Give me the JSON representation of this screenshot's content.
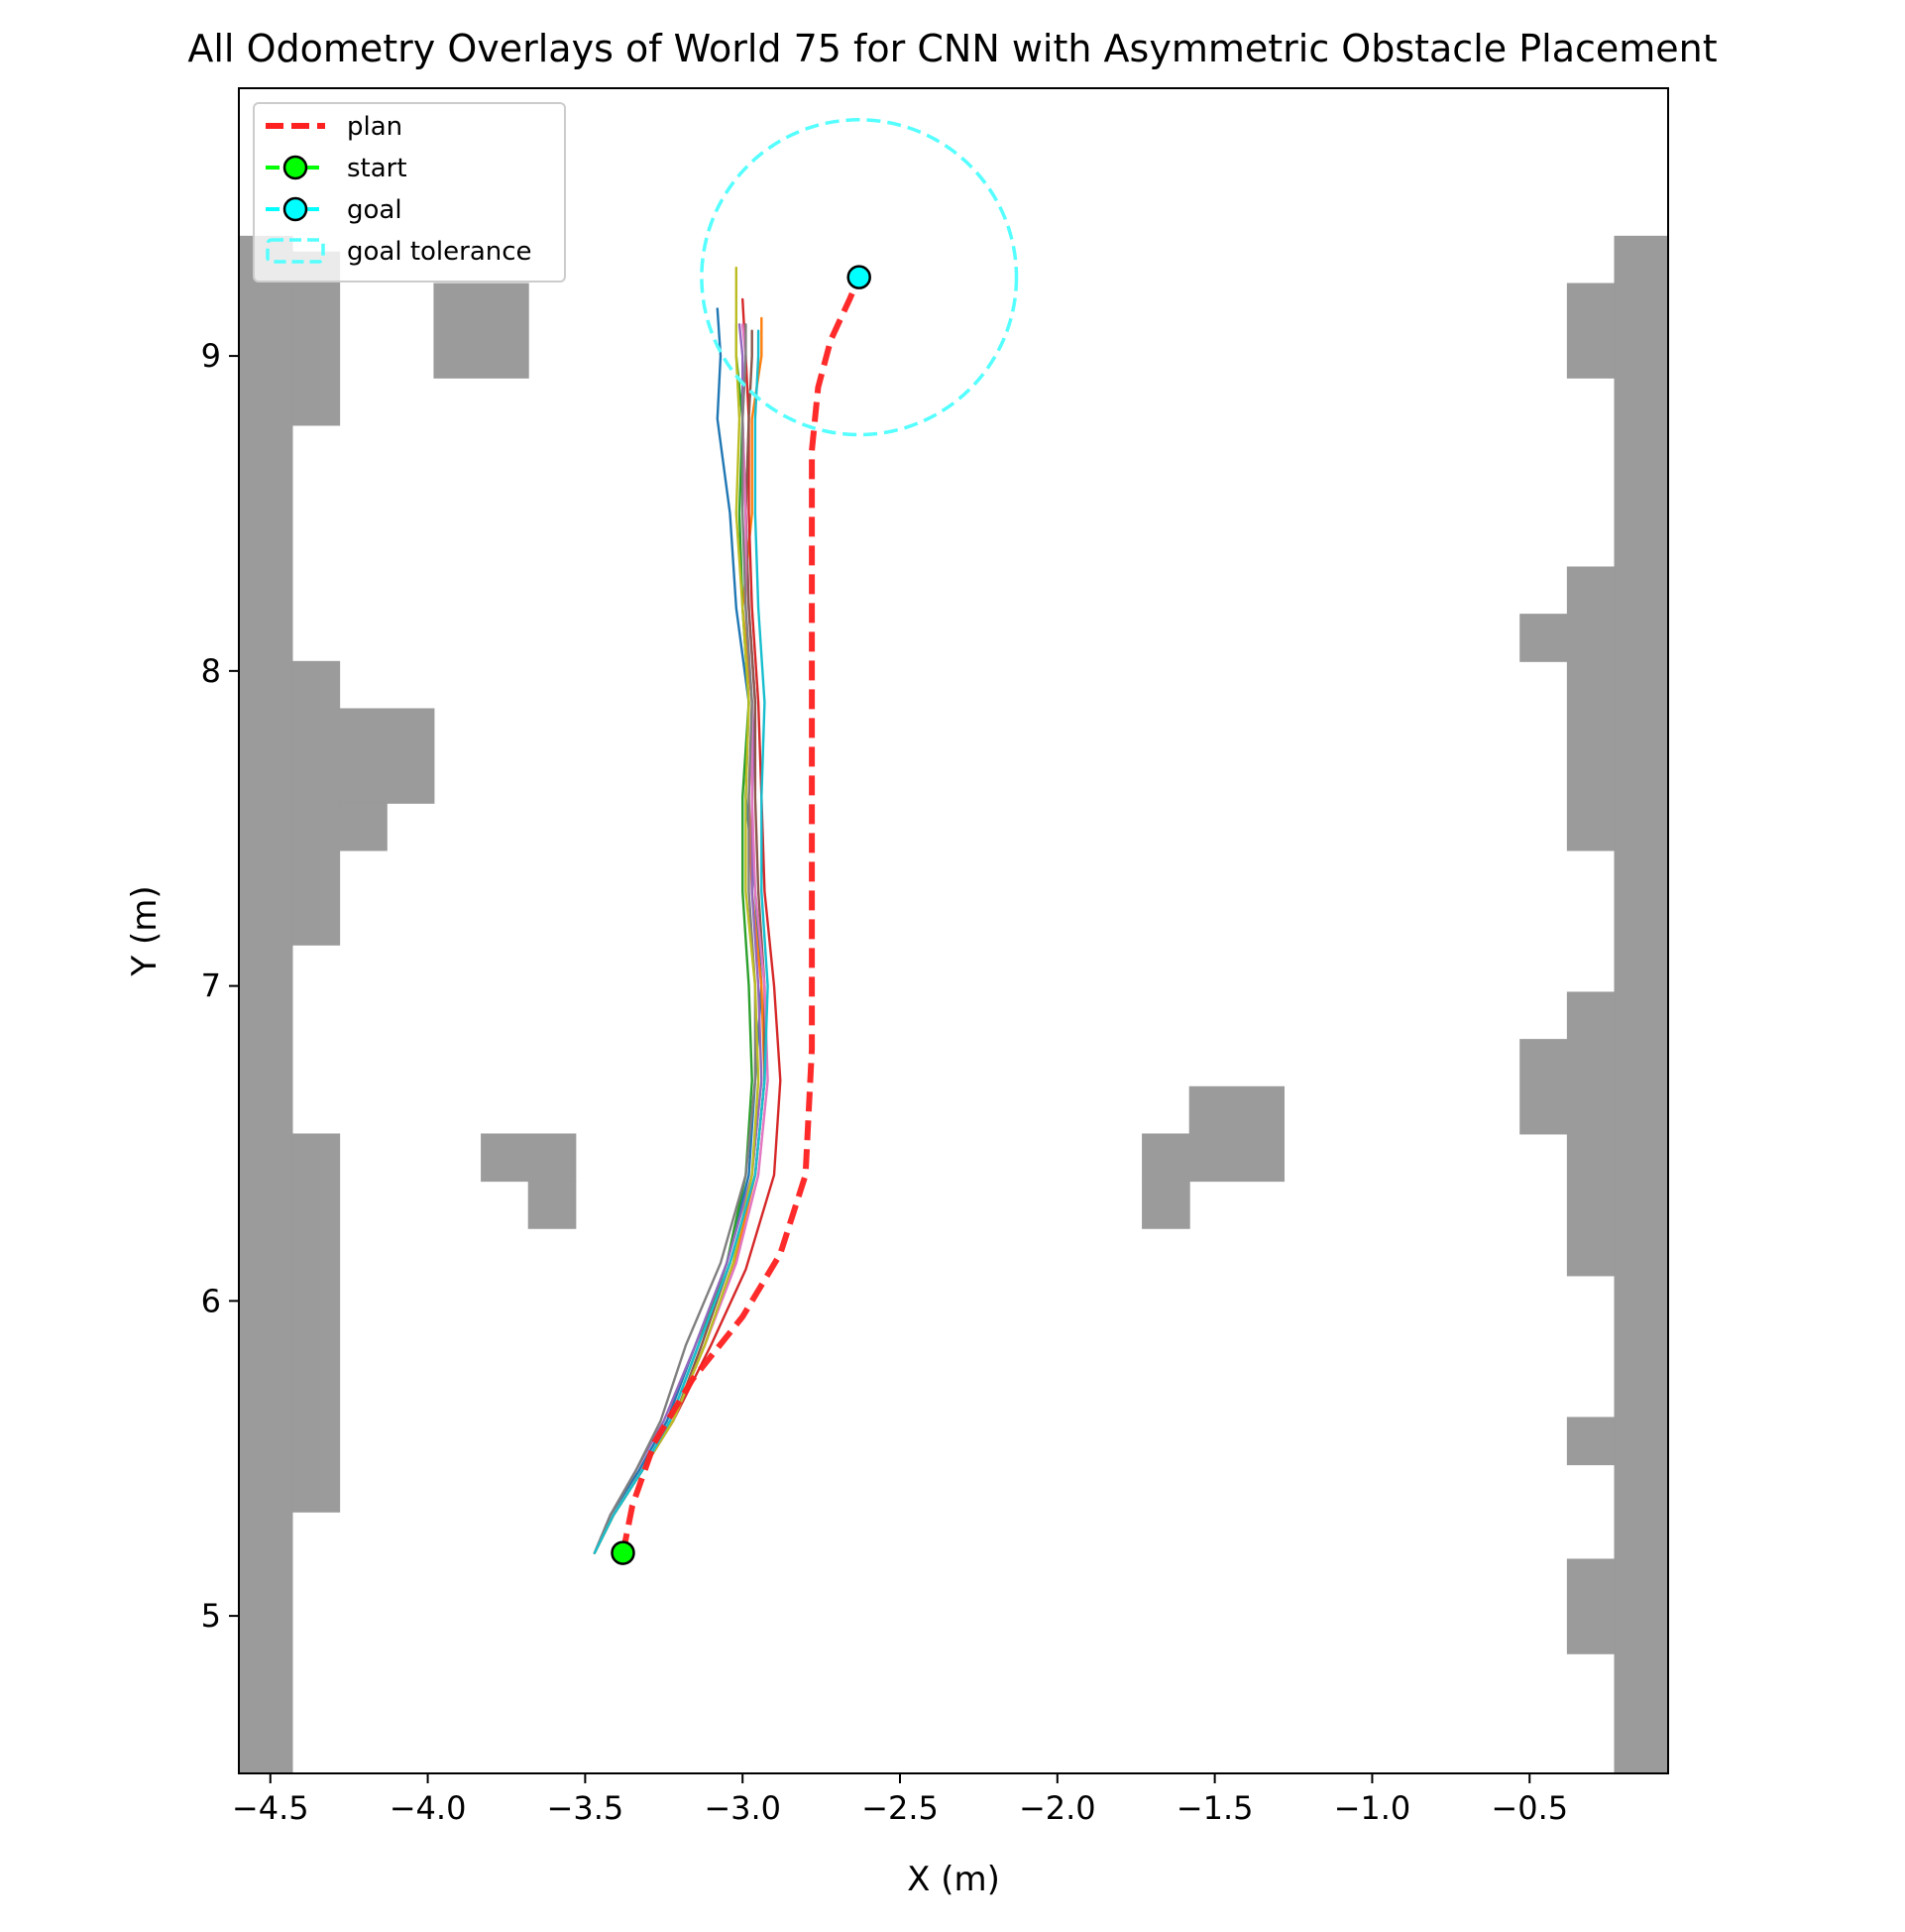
{
  "chart_data": {
    "type": "line",
    "title": "All Odometry Overlays of World 75 for CNN with Asymmetric Obstacle Placement",
    "xlabel": "X (m)",
    "ylabel": "Y (m)",
    "xlim": [
      -4.6,
      -0.06
    ],
    "ylim": [
      4.5,
      9.85
    ],
    "x_ticks": [
      -4.5,
      -4.0,
      -3.5,
      -3.0,
      -2.5,
      -2.0,
      -1.5,
      -1.0,
      -0.5
    ],
    "x_tick_labels": [
      "−4.5",
      "−4.0",
      "−3.5",
      "−3.0",
      "−2.5",
      "−2.0",
      "−1.5",
      "−1.0",
      "−0.5"
    ],
    "y_ticks": [
      5,
      6,
      7,
      8,
      9
    ],
    "y_tick_labels": [
      "5",
      "6",
      "7",
      "8",
      "9"
    ],
    "grid": false,
    "legend": {
      "placement": "top-left",
      "entries": [
        {
          "label": "plan",
          "style": "dashed-line",
          "color": "#ff2020"
        },
        {
          "label": "start",
          "style": "line-marker",
          "color": "#00ff00"
        },
        {
          "label": "goal",
          "style": "line-marker",
          "color": "#00ffff"
        },
        {
          "label": "goal tolerance",
          "style": "dashed-patch",
          "color": "#55ffff"
        }
      ]
    },
    "start": {
      "x": -3.38,
      "y": 5.2,
      "color": "#00ff00"
    },
    "goal": {
      "x": -2.63,
      "y": 9.25,
      "color": "#00ffff"
    },
    "goal_tolerance": {
      "x": -2.63,
      "y": 9.25,
      "radius": 0.5,
      "color": "#55ffff"
    },
    "plan": {
      "color": "#ff2020",
      "x": [
        -3.38,
        -3.35,
        -3.28,
        -3.16,
        -3.0,
        -2.88,
        -2.8,
        -2.78,
        -2.78,
        -2.78,
        -2.78,
        -2.78,
        -2.76,
        -2.72,
        -2.66,
        -2.63
      ],
      "y": [
        5.2,
        5.35,
        5.55,
        5.75,
        5.95,
        6.15,
        6.4,
        6.8,
        7.3,
        7.8,
        8.3,
        8.7,
        8.9,
        9.05,
        9.18,
        9.25
      ]
    },
    "obstacles": {
      "color": "#9b9b9b",
      "cells": [
        [
          -4.6,
          -4.43,
          4.5,
          9.38
        ],
        [
          -4.43,
          -4.28,
          8.78,
          9.33
        ],
        [
          -4.43,
          -4.28,
          7.13,
          8.03
        ],
        [
          -4.28,
          -3.98,
          7.58,
          7.88
        ],
        [
          -4.28,
          -4.13,
          7.43,
          7.58
        ],
        [
          -4.43,
          -4.28,
          5.33,
          6.53
        ],
        [
          -3.98,
          -3.68,
          8.93,
          9.23
        ],
        [
          -3.83,
          -3.53,
          6.38,
          6.53
        ],
        [
          -3.68,
          -3.53,
          6.23,
          6.38
        ],
        [
          -1.73,
          -1.28,
          6.38,
          6.53
        ],
        [
          -1.58,
          -1.28,
          6.53,
          6.68
        ],
        [
          -1.73,
          -1.58,
          6.23,
          6.38
        ],
        [
          -0.23,
          -0.06,
          4.5,
          9.38
        ],
        [
          -0.38,
          -0.23,
          8.93,
          9.23
        ],
        [
          -0.38,
          -0.23,
          7.43,
          8.33
        ],
        [
          -0.53,
          -0.38,
          8.03,
          8.18
        ],
        [
          -0.38,
          -0.23,
          6.08,
          6.98
        ],
        [
          -0.53,
          -0.38,
          6.53,
          6.83
        ],
        [
          -0.38,
          -0.23,
          5.48,
          5.63
        ],
        [
          -0.38,
          -0.23,
          4.88,
          5.18
        ]
      ]
    },
    "series": [
      {
        "color": "#1f77b4",
        "x": [
          -3.47,
          -3.42,
          -3.33,
          -3.24,
          -3.15,
          -3.05,
          -2.98,
          -2.96,
          -2.94,
          -2.96,
          -2.99,
          -2.98,
          -3.02,
          -3.04,
          -3.08,
          -3.07,
          -3.08
        ],
        "y": [
          5.2,
          5.32,
          5.46,
          5.62,
          5.86,
          6.12,
          6.4,
          6.7,
          7.0,
          7.3,
          7.6,
          7.9,
          8.2,
          8.5,
          8.8,
          9.0,
          9.15
        ]
      },
      {
        "color": "#ff7f0e",
        "x": [
          -3.47,
          -3.41,
          -3.32,
          -3.22,
          -3.12,
          -3.03,
          -2.96,
          -2.93,
          -2.94,
          -2.97,
          -2.98,
          -2.97,
          -3.0,
          -2.97,
          -2.97,
          -2.94,
          -2.94
        ],
        "y": [
          5.2,
          5.32,
          5.46,
          5.62,
          5.86,
          6.1,
          6.4,
          6.7,
          7.0,
          7.3,
          7.6,
          7.9,
          8.2,
          8.5,
          8.8,
          9.0,
          9.12
        ]
      },
      {
        "color": "#2ca02c",
        "x": [
          -3.47,
          -3.41,
          -3.32,
          -3.23,
          -3.14,
          -3.05,
          -2.99,
          -2.97,
          -2.98,
          -3.0,
          -3.0,
          -2.98,
          -3.0,
          -3.01,
          -3.0,
          -3.02,
          -3.02
        ],
        "y": [
          5.2,
          5.32,
          5.46,
          5.62,
          5.86,
          6.12,
          6.4,
          6.7,
          7.0,
          7.3,
          7.6,
          7.9,
          8.2,
          8.5,
          8.8,
          9.0,
          9.1
        ]
      },
      {
        "color": "#d62728",
        "x": [
          -3.47,
          -3.41,
          -3.32,
          -3.22,
          -3.1,
          -2.99,
          -2.9,
          -2.88,
          -2.9,
          -2.93,
          -2.94,
          -2.95,
          -2.97,
          -2.98,
          -2.98,
          -2.99,
          -3.0
        ],
        "y": [
          5.2,
          5.32,
          5.46,
          5.62,
          5.86,
          6.1,
          6.4,
          6.7,
          7.0,
          7.3,
          7.6,
          7.9,
          8.2,
          8.5,
          8.8,
          9.0,
          9.18
        ]
      },
      {
        "color": "#9467bd",
        "x": [
          -3.47,
          -3.42,
          -3.34,
          -3.25,
          -3.15,
          -3.05,
          -2.97,
          -2.94,
          -2.95,
          -2.97,
          -2.97,
          -2.96,
          -2.98,
          -2.99,
          -3.0,
          -3.0,
          -3.01
        ],
        "y": [
          5.2,
          5.32,
          5.46,
          5.62,
          5.86,
          6.12,
          6.4,
          6.7,
          7.0,
          7.3,
          7.6,
          7.9,
          8.2,
          8.5,
          8.8,
          9.0,
          9.1
        ]
      },
      {
        "color": "#8c564b",
        "x": [
          -3.47,
          -3.41,
          -3.32,
          -3.22,
          -3.13,
          -3.04,
          -2.96,
          -2.93,
          -2.93,
          -2.95,
          -2.96,
          -2.96,
          -2.98,
          -2.99,
          -2.98,
          -2.97,
          -2.97
        ],
        "y": [
          5.2,
          5.32,
          5.46,
          5.62,
          5.86,
          6.12,
          6.4,
          6.7,
          7.0,
          7.3,
          7.6,
          7.9,
          8.2,
          8.5,
          8.8,
          9.0,
          9.08
        ]
      },
      {
        "color": "#e377c2",
        "x": [
          -3.47,
          -3.41,
          -3.32,
          -3.22,
          -3.12,
          -3.02,
          -2.95,
          -2.92,
          -2.93,
          -2.96,
          -2.97,
          -2.97,
          -2.99,
          -2.99,
          -3.0,
          -2.99,
          -3.0
        ],
        "y": [
          5.2,
          5.32,
          5.46,
          5.62,
          5.86,
          6.12,
          6.4,
          6.7,
          7.0,
          7.3,
          7.6,
          7.9,
          8.2,
          8.5,
          8.8,
          9.0,
          9.1
        ]
      },
      {
        "color": "#7f7f7f",
        "x": [
          -3.47,
          -3.42,
          -3.34,
          -3.26,
          -3.18,
          -3.07,
          -2.99,
          -2.96,
          -2.96,
          -2.98,
          -2.98,
          -2.97,
          -2.99,
          -3.0,
          -3.0,
          -2.99,
          -2.99
        ],
        "y": [
          5.2,
          5.32,
          5.46,
          5.62,
          5.86,
          6.12,
          6.4,
          6.7,
          7.0,
          7.3,
          7.6,
          7.9,
          8.2,
          8.5,
          8.8,
          9.0,
          9.1
        ]
      },
      {
        "color": "#bcbd22",
        "x": [
          -3.47,
          -3.41,
          -3.32,
          -3.22,
          -3.12,
          -3.03,
          -2.97,
          -2.95,
          -2.96,
          -2.99,
          -2.99,
          -2.98,
          -3.0,
          -3.02,
          -3.01,
          -3.02,
          -3.02
        ],
        "y": [
          5.2,
          5.32,
          5.46,
          5.62,
          5.86,
          6.12,
          6.4,
          6.7,
          7.0,
          7.3,
          7.6,
          7.9,
          8.2,
          8.5,
          8.8,
          9.0,
          9.28
        ]
      },
      {
        "color": "#17becf",
        "x": [
          -3.47,
          -3.41,
          -3.32,
          -3.23,
          -3.14,
          -3.04,
          -2.96,
          -2.93,
          -2.92,
          -2.94,
          -2.94,
          -2.93,
          -2.95,
          -2.96,
          -2.96,
          -2.95,
          -2.95
        ],
        "y": [
          5.2,
          5.32,
          5.46,
          5.62,
          5.86,
          6.12,
          6.4,
          6.7,
          7.0,
          7.3,
          7.6,
          7.9,
          8.2,
          8.5,
          8.8,
          9.0,
          9.08
        ]
      }
    ]
  }
}
